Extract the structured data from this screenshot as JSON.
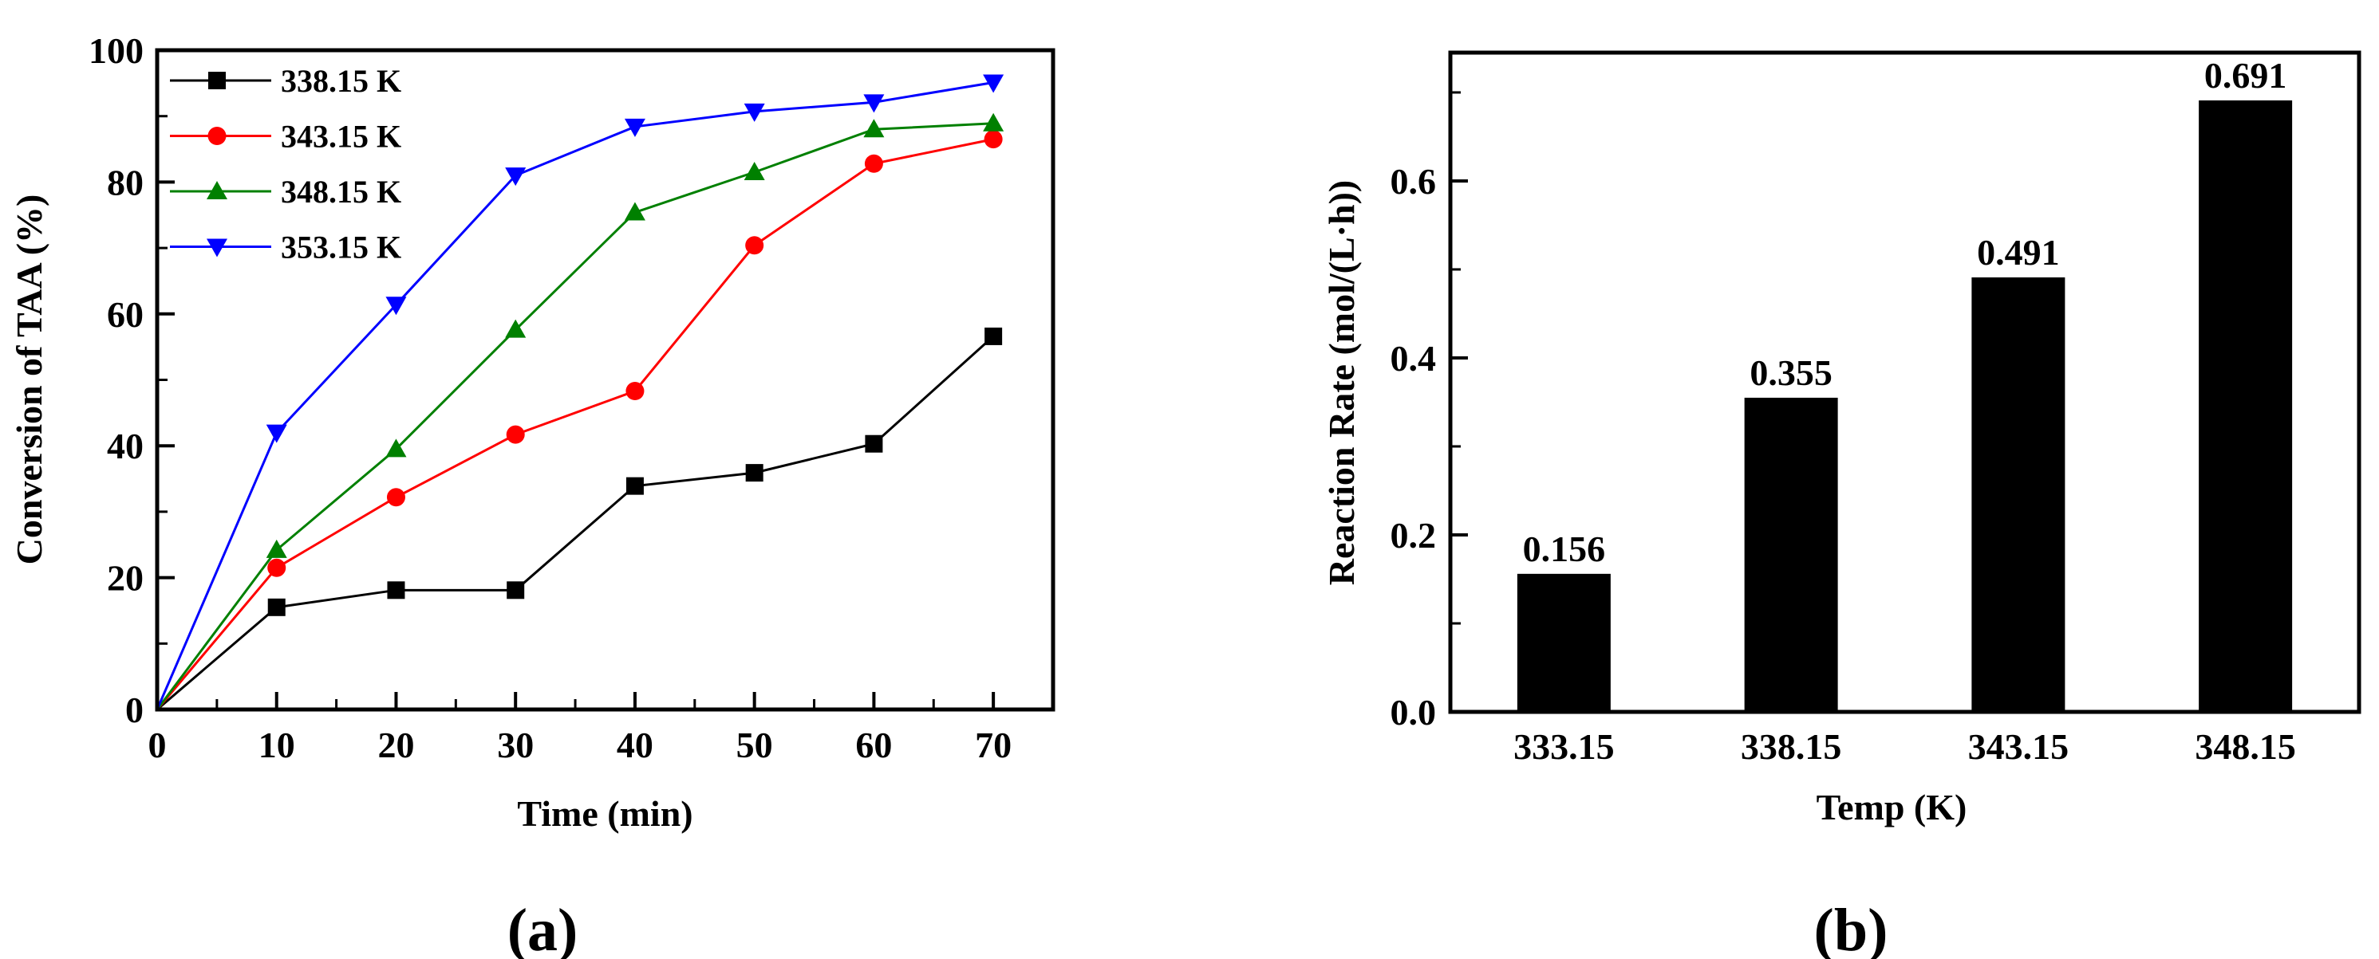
{
  "figure": {
    "caption_a": "(a)",
    "caption_b": "(b)",
    "background_color": "#ffffff",
    "axis_color": "#000000"
  },
  "chart_data": [
    {
      "id": "a",
      "type": "line",
      "xlabel": "Time (min)",
      "ylabel": "Conversion of TAA (%)",
      "xlim": [
        0,
        75
      ],
      "ylim": [
        0,
        100
      ],
      "x_major_ticks": [
        0,
        10,
        20,
        30,
        40,
        50,
        60,
        70
      ],
      "x_tick_labels": [
        "0",
        "10",
        "20",
        "30",
        "40",
        "50",
        "60",
        "70"
      ],
      "x_minor_ticks": [
        5,
        15,
        25,
        35,
        45,
        55,
        65,
        75
      ],
      "y_major_ticks": [
        0,
        20,
        40,
        60,
        80,
        100
      ],
      "y_tick_labels": [
        "0",
        "20",
        "40",
        "60",
        "80",
        "100"
      ],
      "y_minor_ticks": [
        10,
        30,
        50,
        70,
        90
      ],
      "grid": false,
      "legend_position": "top-left",
      "x": [
        0,
        10,
        20,
        30,
        40,
        50,
        60,
        70
      ],
      "series": [
        {
          "name": "338.15 K",
          "color": "#000000",
          "marker": "square",
          "values": [
            0,
            15.5,
            18.1,
            18.1,
            33.9,
            35.9,
            40.3,
            56.6
          ]
        },
        {
          "name": "343.15 K",
          "color": "#ff0000",
          "marker": "circle",
          "values": [
            0,
            21.5,
            32.2,
            41.7,
            48.3,
            70.4,
            82.8,
            86.5
          ]
        },
        {
          "name": "348.15 K",
          "color": "#008000",
          "marker": "triangle-up",
          "values": [
            0,
            24.2,
            39.5,
            57.6,
            75.4,
            81.5,
            88.0,
            88.9
          ]
        },
        {
          "name": "353.15 K",
          "color": "#0000ff",
          "marker": "triangle-down",
          "values": [
            0,
            42.0,
            61.4,
            81.0,
            88.4,
            90.7,
            92.1,
            95.1
          ]
        }
      ]
    },
    {
      "id": "b",
      "type": "bar",
      "xlabel": "Temp (K)",
      "ylabel": "Reaction Rate (mol/(L·h))",
      "categories": [
        "333.15",
        "338.15",
        "343.15",
        "348.15"
      ],
      "values": [
        0.156,
        0.355,
        0.491,
        0.691
      ],
      "value_labels": [
        "0.156",
        "0.355",
        "0.491",
        "0.691"
      ],
      "bar_color": "#000000",
      "ylim": [
        0,
        0.745
      ],
      "y_major_ticks": [
        0.0,
        0.2,
        0.4,
        0.6
      ],
      "y_tick_labels": [
        "0.0",
        "0.2",
        "0.4",
        "0.6"
      ],
      "y_minor_ticks": [
        0.1,
        0.3,
        0.5,
        0.7
      ],
      "grid": false
    }
  ]
}
